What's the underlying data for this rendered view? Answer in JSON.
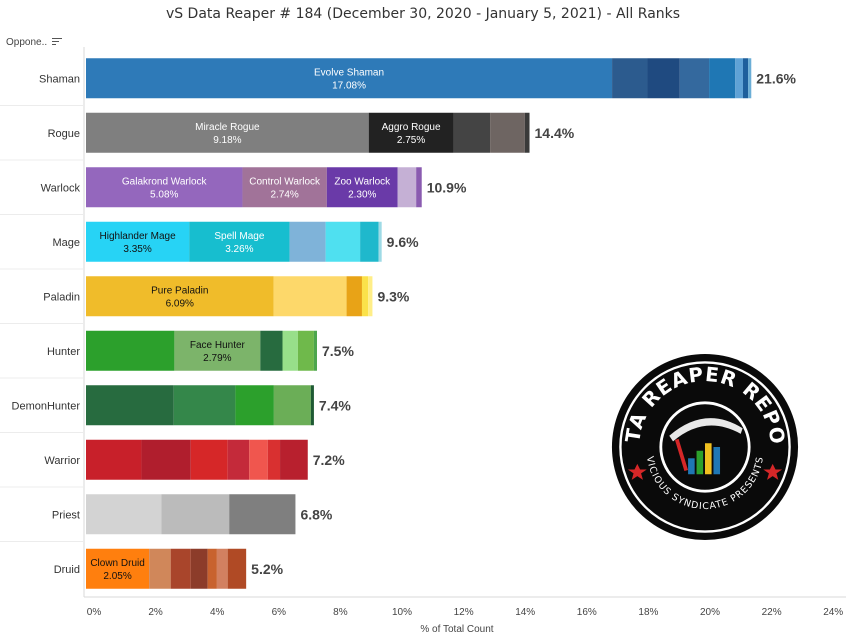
{
  "header": {
    "title": "vS Data Reaper # 184 (December 30, 2020 - January 5, 2021) - All Ranks",
    "row_field": "Oppone.."
  },
  "logo": {
    "top_text": "DATA REAPER REPORT",
    "bottom_text": "VICIOUS SYNDICATE PRESENTS"
  },
  "chart_data": {
    "type": "bar",
    "orientation": "horizontal",
    "stacked": true,
    "title": "vS Data Reaper # 184 (December 30, 2020 - January 5, 2021) - All Ranks",
    "xlabel": "% of Total Count",
    "ylabel": "",
    "xlim": [
      0,
      24
    ],
    "xticks": [
      "0%",
      "2%",
      "4%",
      "6%",
      "8%",
      "10%",
      "12%",
      "14%",
      "16%",
      "18%",
      "20%",
      "22%",
      "24%"
    ],
    "grid": false,
    "categories": [
      "Shaman",
      "Rogue",
      "Warlock",
      "Mage",
      "Paladin",
      "Hunter",
      "DemonHunter",
      "Warrior",
      "Priest",
      "Druid"
    ],
    "totals": [
      "21.6%",
      "14.4%",
      "10.9%",
      "9.6%",
      "9.3%",
      "7.5%",
      "7.4%",
      "7.2%",
      "6.8%",
      "5.2%"
    ],
    "rows": [
      {
        "class": "Shaman",
        "total": 21.6,
        "segments": [
          {
            "label": "Evolve Shaman",
            "value": 17.08,
            "color": "#2e7ab8"
          },
          {
            "value": 1.15,
            "color": "#2c5b8e"
          },
          {
            "value": 1.05,
            "color": "#1f4a80"
          },
          {
            "value": 0.95,
            "color": "#34699e"
          },
          {
            "value": 0.85,
            "color": "#1f77b4"
          },
          {
            "value": 0.25,
            "color": "#5fa2d6"
          },
          {
            "value": 0.17,
            "color": "#1e5f9c"
          },
          {
            "value": 0.1,
            "color": "#6baed6"
          }
        ]
      },
      {
        "class": "Rogue",
        "total": 14.4,
        "segments": [
          {
            "label": "Miracle Rogue",
            "value": 9.18,
            "color": "#7f7f7f"
          },
          {
            "label": "Aggro Rogue",
            "value": 2.75,
            "color": "#222222"
          },
          {
            "value": 1.19,
            "color": "#444444"
          },
          {
            "value": 1.13,
            "color": "#6e6562"
          },
          {
            "value": 0.15,
            "color": "#3a3a3a"
          }
        ]
      },
      {
        "class": "Warlock",
        "total": 10.9,
        "segments": [
          {
            "label": "Galakrond Warlock",
            "value": 5.08,
            "color": "#9467bd"
          },
          {
            "label": "Control Warlock",
            "value": 2.74,
            "color": "#a17399"
          },
          {
            "label": "Zoo Warlock",
            "value": 2.3,
            "color": "#6a3aa8"
          },
          {
            "value": 0.6,
            "color": "#c5b0d5"
          },
          {
            "value": 0.18,
            "color": "#8a5bb0"
          }
        ]
      },
      {
        "class": "Mage",
        "total": 9.6,
        "segments": [
          {
            "label": "Highlander Mage",
            "value": 3.35,
            "color": "#27d3f5"
          },
          {
            "label": "Spell Mage",
            "value": 3.26,
            "color": "#17becf"
          },
          {
            "value": 1.17,
            "color": "#7fb3d9"
          },
          {
            "value": 1.12,
            "color": "#4fe0f0"
          },
          {
            "value": 0.6,
            "color": "#1fb8cc"
          },
          {
            "value": 0.1,
            "color": "#9edae5"
          }
        ]
      },
      {
        "class": "Paladin",
        "total": 9.3,
        "segments": [
          {
            "label": "Pure Paladin",
            "value": 6.09,
            "color": "#f0bc2a"
          },
          {
            "value": 2.37,
            "color": "#fdd86a"
          },
          {
            "value": 0.5,
            "color": "#e8a317"
          },
          {
            "value": 0.2,
            "color": "#fbe24a"
          },
          {
            "value": 0.14,
            "color": "#ffee88"
          }
        ]
      },
      {
        "class": "Hunter",
        "total": 7.5,
        "segments": [
          {
            "value": 2.87,
            "color": "#2ca02c"
          },
          {
            "label": "Face Hunter",
            "value": 2.79,
            "color": "#7cb46a"
          },
          {
            "value": 0.72,
            "color": "#276b3f"
          },
          {
            "value": 0.5,
            "color": "#98df8a"
          },
          {
            "value": 0.52,
            "color": "#6fb94b"
          },
          {
            "value": 0.1,
            "color": "#4da64d"
          }
        ]
      },
      {
        "class": "DemonHunter",
        "total": 7.4,
        "segments": [
          {
            "value": 2.85,
            "color": "#276b3f"
          },
          {
            "value": 2.0,
            "color": "#34874a"
          },
          {
            "value": 1.25,
            "color": "#2ca02c"
          },
          {
            "value": 1.2,
            "color": "#6bae57"
          },
          {
            "value": 0.1,
            "color": "#1e5a33"
          }
        ]
      },
      {
        "class": "Warrior",
        "total": 7.2,
        "segments": [
          {
            "value": 1.8,
            "color": "#c8202a"
          },
          {
            "value": 1.6,
            "color": "#b01e2d"
          },
          {
            "value": 1.2,
            "color": "#d62728"
          },
          {
            "value": 0.7,
            "color": "#c42a3a"
          },
          {
            "value": 0.6,
            "color": "#f0564e"
          },
          {
            "value": 0.4,
            "color": "#d93030"
          },
          {
            "value": 0.9,
            "color": "#b8202e"
          }
        ]
      },
      {
        "class": "Priest",
        "total": 6.8,
        "segments": [
          {
            "value": 2.45,
            "color": "#d3d3d3"
          },
          {
            "value": 2.2,
            "color": "#bbbbbb"
          },
          {
            "value": 2.15,
            "color": "#7f7f7f"
          }
        ]
      },
      {
        "class": "Druid",
        "total": 5.2,
        "segments": [
          {
            "label": "Clown Druid",
            "value": 2.05,
            "color": "#ff7f0e"
          },
          {
            "value": 0.7,
            "color": "#d0875a"
          },
          {
            "value": 0.65,
            "color": "#a9452b"
          },
          {
            "value": 0.55,
            "color": "#8c3c2a"
          },
          {
            "value": 0.3,
            "color": "#c8622e"
          },
          {
            "value": 0.35,
            "color": "#d28060"
          },
          {
            "value": 0.6,
            "color": "#b04a25"
          }
        ]
      }
    ]
  }
}
